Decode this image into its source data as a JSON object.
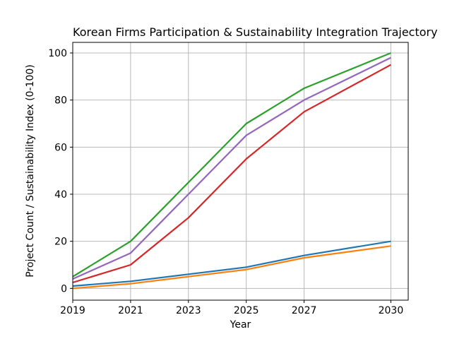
{
  "figure": {
    "background_color": "#ffffff",
    "grid_color": "#b8b8b8",
    "spine_color": "#000000",
    "tick_color": "#000000"
  },
  "chart_data": {
    "type": "line",
    "title": "Korean Firms Participation & Sustainability Integration Trajectory",
    "xlabel": "Year",
    "ylabel": "Project Count / Sustainability Index (0-100)",
    "x": [
      2019,
      2021,
      2023,
      2025,
      2027,
      2030
    ],
    "x_ticks": [
      2019,
      2021,
      2023,
      2025,
      2027,
      2030
    ],
    "x_tick_labels": [
      "2019",
      "2021",
      "2023",
      "2025",
      "2027",
      "2030"
    ],
    "y_ticks": [
      0,
      20,
      40,
      60,
      80,
      100
    ],
    "y_tick_labels": [
      "0",
      "20",
      "40",
      "60",
      "80",
      "100"
    ],
    "xlim": [
      2019,
      2030.6
    ],
    "ylim": [
      -5,
      104.5
    ],
    "grid": true,
    "legend": "none",
    "series": [
      {
        "name": "blue",
        "color": "#1f77b4",
        "values": [
          1,
          3,
          6,
          9,
          14,
          20
        ]
      },
      {
        "name": "orange",
        "color": "#ff7f0e",
        "values": [
          0,
          2,
          5,
          8,
          13,
          18
        ]
      },
      {
        "name": "green",
        "color": "#2ca02c",
        "values": [
          5,
          20,
          45,
          70,
          85,
          100
        ]
      },
      {
        "name": "red",
        "color": "#d62728",
        "values": [
          2.5,
          10,
          30,
          55,
          75,
          95
        ]
      },
      {
        "name": "purple",
        "color": "#9467bd",
        "values": [
          4,
          15,
          40,
          65,
          80,
          98
        ]
      }
    ]
  }
}
